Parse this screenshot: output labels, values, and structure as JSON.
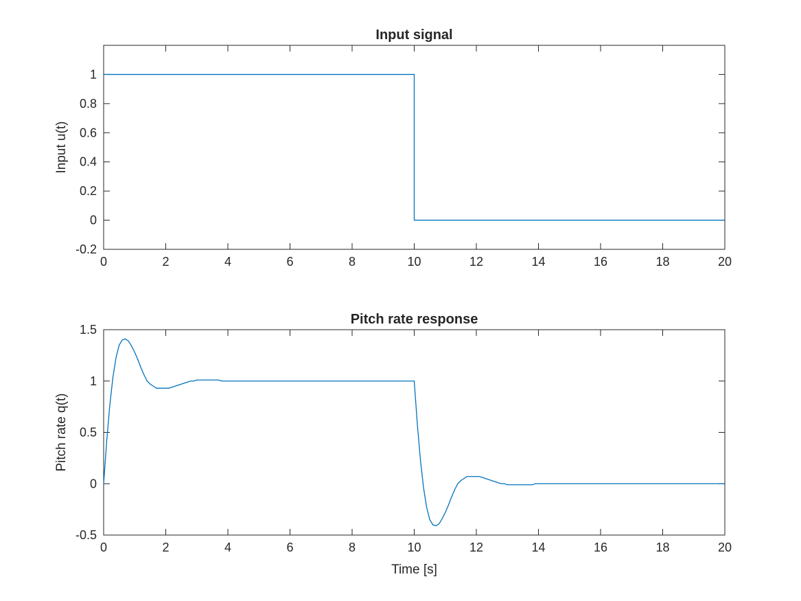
{
  "chart_data": [
    {
      "type": "line",
      "title": "Input signal",
      "xlabel": "",
      "ylabel": "Input u(t)",
      "xlim": [
        0,
        20
      ],
      "ylim": [
        -0.2,
        1.2
      ],
      "xticks": [
        0,
        2,
        4,
        6,
        8,
        10,
        12,
        14,
        16,
        18,
        20
      ],
      "xtick_labels": [
        "0",
        "2",
        "4",
        "6",
        "8",
        "10",
        "12",
        "14",
        "16",
        "18",
        "20"
      ],
      "yticks": [
        -0.2,
        0,
        0.2,
        0.4,
        0.6,
        0.8,
        1
      ],
      "ytick_labels": [
        "-0.2",
        "0",
        "0.2",
        "0.4",
        "0.6",
        "0.8",
        "1"
      ],
      "grid": false,
      "color": "#0072BD",
      "series": [
        {
          "x": [
            0,
            10,
            10,
            20
          ],
          "y": [
            1,
            1,
            0,
            0
          ]
        }
      ]
    },
    {
      "type": "line",
      "title": "Pitch rate response",
      "xlabel": "Time [s]",
      "ylabel": "Pitch rate q(t)",
      "xlim": [
        0,
        20
      ],
      "ylim": [
        -0.5,
        1.5
      ],
      "xticks": [
        0,
        2,
        4,
        6,
        8,
        10,
        12,
        14,
        16,
        18,
        20
      ],
      "xtick_labels": [
        "0",
        "2",
        "4",
        "6",
        "8",
        "10",
        "12",
        "14",
        "16",
        "18",
        "20"
      ],
      "yticks": [
        -0.5,
        0,
        0.5,
        1,
        1.5
      ],
      "ytick_labels": [
        "-0.5",
        "0",
        "0.5",
        "1",
        "1.5"
      ],
      "grid": false,
      "color": "#0072BD",
      "series": [
        {
          "x": [
            0,
            0.1,
            0.2,
            0.3,
            0.4,
            0.5,
            0.6,
            0.7,
            0.8,
            0.9,
            1.0,
            1.1,
            1.2,
            1.3,
            1.4,
            1.5,
            1.6,
            1.7,
            1.8,
            1.9,
            2.0,
            2.1,
            2.2,
            2.3,
            2.4,
            2.5,
            2.6,
            2.7,
            2.8,
            2.9,
            3.0,
            3.1,
            3.2,
            3.3,
            3.4,
            3.5,
            3.6,
            3.7,
            3.8,
            3.9,
            4.0,
            4.2,
            4.4,
            4.6,
            4.8,
            5.0,
            5.5,
            6.0,
            7.0,
            8.0,
            9.0,
            10.0,
            10.1,
            10.2,
            10.3,
            10.4,
            10.5,
            10.6,
            10.7,
            10.8,
            10.9,
            11.0,
            11.1,
            11.2,
            11.3,
            11.4,
            11.5,
            11.6,
            11.7,
            11.8,
            11.9,
            12.0,
            12.1,
            12.2,
            12.3,
            12.4,
            12.5,
            12.6,
            12.7,
            12.8,
            12.9,
            13.0,
            13.1,
            13.2,
            13.3,
            13.4,
            13.5,
            13.6,
            13.7,
            13.8,
            13.9,
            14.0,
            14.2,
            14.4,
            14.6,
            14.8,
            15.0,
            15.5,
            16.0,
            17.0,
            18.0,
            19.0,
            20.0
          ],
          "y": [
            0,
            0.42,
            0.77,
            1.04,
            1.23,
            1.35,
            1.4,
            1.41,
            1.39,
            1.34,
            1.28,
            1.21,
            1.13,
            1.06,
            1.0,
            0.97,
            0.95,
            0.93,
            0.93,
            0.93,
            0.93,
            0.93,
            0.94,
            0.95,
            0.96,
            0.97,
            0.98,
            0.99,
            1.0,
            1.0,
            1.01,
            1.01,
            1.01,
            1.01,
            1.01,
            1.01,
            1.01,
            1.01,
            1.0,
            1.0,
            1.0,
            1.0,
            1.0,
            1.0,
            1.0,
            1.0,
            1.0,
            1.0,
            1.0,
            1.0,
            1.0,
            1.0,
            0.58,
            0.23,
            -0.04,
            -0.23,
            -0.35,
            -0.4,
            -0.41,
            -0.39,
            -0.34,
            -0.28,
            -0.21,
            -0.13,
            -0.06,
            0.0,
            0.03,
            0.05,
            0.07,
            0.07,
            0.07,
            0.07,
            0.07,
            0.06,
            0.05,
            0.04,
            0.03,
            0.02,
            0.01,
            0.0,
            0.0,
            -0.01,
            -0.01,
            -0.01,
            -0.01,
            -0.01,
            -0.01,
            -0.01,
            -0.01,
            -0.01,
            0.0,
            0.0,
            0.0,
            0.0,
            0.0,
            0.0,
            0.0,
            0.0,
            0.0,
            0.0,
            0.0,
            0.0,
            0.0
          ]
        }
      ]
    }
  ]
}
